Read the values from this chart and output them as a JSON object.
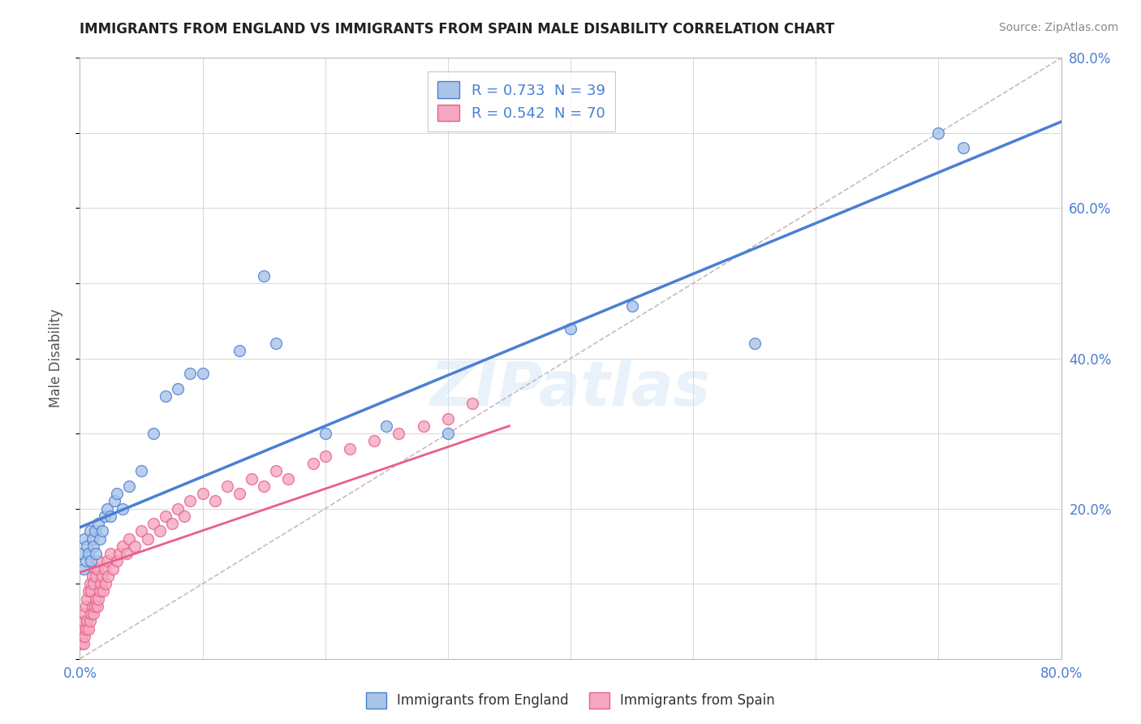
{
  "title": "IMMIGRANTS FROM ENGLAND VS IMMIGRANTS FROM SPAIN MALE DISABILITY CORRELATION CHART",
  "source_text": "Source: ZipAtlas.com",
  "ylabel": "Male Disability",
  "xlim": [
    0.0,
    0.8
  ],
  "ylim": [
    0.0,
    0.8
  ],
  "england_R": 0.733,
  "england_N": 39,
  "spain_R": 0.542,
  "spain_N": 70,
  "england_color": "#aac4e8",
  "spain_color": "#f5a8c0",
  "england_line_color": "#4a7fd4",
  "spain_line_color": "#e8608a",
  "diagonal_color": "#c8b0b8",
  "watermark": "ZIPatlas",
  "england_scatter_x": [
    0.002,
    0.003,
    0.004,
    0.005,
    0.006,
    0.007,
    0.008,
    0.009,
    0.01,
    0.011,
    0.012,
    0.013,
    0.015,
    0.016,
    0.018,
    0.02,
    0.022,
    0.025,
    0.028,
    0.03,
    0.035,
    0.04,
    0.05,
    0.06,
    0.07,
    0.08,
    0.09,
    0.1,
    0.13,
    0.15,
    0.16,
    0.2,
    0.25,
    0.3,
    0.4,
    0.45,
    0.55,
    0.7,
    0.72
  ],
  "england_scatter_y": [
    0.14,
    0.12,
    0.16,
    0.13,
    0.15,
    0.14,
    0.17,
    0.13,
    0.16,
    0.15,
    0.17,
    0.14,
    0.18,
    0.16,
    0.17,
    0.19,
    0.2,
    0.19,
    0.21,
    0.22,
    0.2,
    0.23,
    0.25,
    0.3,
    0.35,
    0.36,
    0.38,
    0.38,
    0.41,
    0.51,
    0.42,
    0.3,
    0.31,
    0.3,
    0.44,
    0.47,
    0.42,
    0.7,
    0.68
  ],
  "spain_scatter_x": [
    0.001,
    0.002,
    0.002,
    0.003,
    0.003,
    0.004,
    0.004,
    0.005,
    0.005,
    0.006,
    0.006,
    0.007,
    0.007,
    0.008,
    0.008,
    0.009,
    0.009,
    0.01,
    0.01,
    0.011,
    0.011,
    0.012,
    0.012,
    0.013,
    0.013,
    0.014,
    0.014,
    0.015,
    0.015,
    0.016,
    0.017,
    0.018,
    0.019,
    0.02,
    0.021,
    0.022,
    0.023,
    0.025,
    0.027,
    0.03,
    0.032,
    0.035,
    0.038,
    0.04,
    0.045,
    0.05,
    0.055,
    0.06,
    0.065,
    0.07,
    0.075,
    0.08,
    0.085,
    0.09,
    0.1,
    0.11,
    0.12,
    0.13,
    0.14,
    0.15,
    0.16,
    0.17,
    0.19,
    0.2,
    0.22,
    0.24,
    0.26,
    0.28,
    0.3,
    0.32
  ],
  "spain_scatter_y": [
    0.02,
    0.03,
    0.04,
    0.02,
    0.05,
    0.03,
    0.06,
    0.04,
    0.07,
    0.05,
    0.08,
    0.04,
    0.09,
    0.05,
    0.1,
    0.06,
    0.09,
    0.07,
    0.11,
    0.06,
    0.1,
    0.07,
    0.12,
    0.08,
    0.11,
    0.07,
    0.12,
    0.08,
    0.13,
    0.09,
    0.1,
    0.11,
    0.09,
    0.12,
    0.1,
    0.13,
    0.11,
    0.14,
    0.12,
    0.13,
    0.14,
    0.15,
    0.14,
    0.16,
    0.15,
    0.17,
    0.16,
    0.18,
    0.17,
    0.19,
    0.18,
    0.2,
    0.19,
    0.21,
    0.22,
    0.21,
    0.23,
    0.22,
    0.24,
    0.23,
    0.25,
    0.24,
    0.26,
    0.27,
    0.28,
    0.29,
    0.3,
    0.31,
    0.32,
    0.34
  ],
  "england_regline": [
    0.0,
    0.8,
    0.175,
    0.715
  ],
  "spain_regline": [
    0.0,
    0.35,
    0.115,
    0.31
  ]
}
